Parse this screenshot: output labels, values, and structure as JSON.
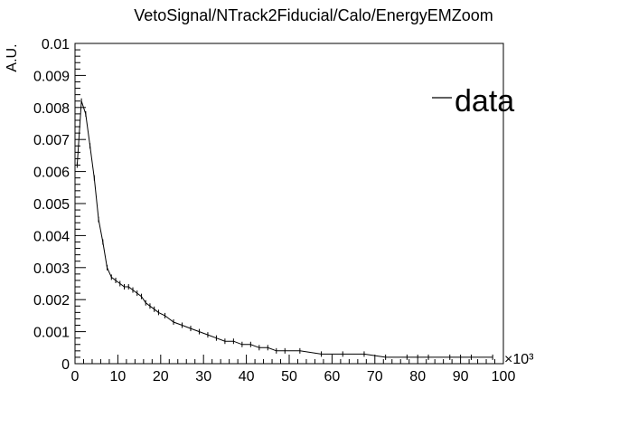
{
  "chart_data": {
    "type": "line",
    "title": "VetoSignal/NTrack2Fiducial/Calo/EnergyEMZoom",
    "xlabel": "",
    "ylabel": "A.U.",
    "x_multiplier": "×10³",
    "xlim": [
      0,
      100
    ],
    "ylim": [
      0,
      0.01
    ],
    "x_ticks": [
      "0",
      "10",
      "20",
      "30",
      "40",
      "50",
      "60",
      "70",
      "80",
      "90",
      "100"
    ],
    "y_ticks": [
      "0",
      "0.001",
      "0.002",
      "0.003",
      "0.004",
      "0.005",
      "0.006",
      "0.007",
      "0.008",
      "0.009",
      "0.01"
    ],
    "grid": false,
    "legend_position": "top-right",
    "line_color": "#000000",
    "series": [
      {
        "name": "data",
        "x": [
          0.5,
          1.5,
          2.5,
          3.5,
          4.5,
          5.5,
          6.5,
          7.5,
          8.5,
          9.5,
          10.5,
          11.5,
          12.5,
          13.5,
          14.5,
          15.5,
          16.5,
          17.5,
          18.5,
          19.5,
          21,
          23,
          25,
          27,
          29,
          31,
          33,
          35,
          37,
          39,
          41,
          43,
          45,
          47,
          49,
          52.5,
          57.5,
          62.5,
          67.5,
          72.5,
          77.5,
          82.5,
          87.5,
          92.5,
          97.5
        ],
        "values": [
          0.0062,
          0.0082,
          0.0078,
          0.0068,
          0.0058,
          0.0045,
          0.0038,
          0.003,
          0.0027,
          0.0026,
          0.0025,
          0.0024,
          0.0024,
          0.0023,
          0.0022,
          0.0021,
          0.0019,
          0.0018,
          0.0017,
          0.0016,
          0.0015,
          0.0013,
          0.0012,
          0.0011,
          0.001,
          0.0009,
          0.0008,
          0.0007,
          0.0007,
          0.0006,
          0.0006,
          0.0005,
          0.0005,
          0.0004,
          0.0004,
          0.0004,
          0.0003,
          0.0003,
          0.0003,
          0.0002,
          0.0002,
          0.0002,
          0.0002,
          0.0002,
          0.0002
        ]
      }
    ]
  }
}
